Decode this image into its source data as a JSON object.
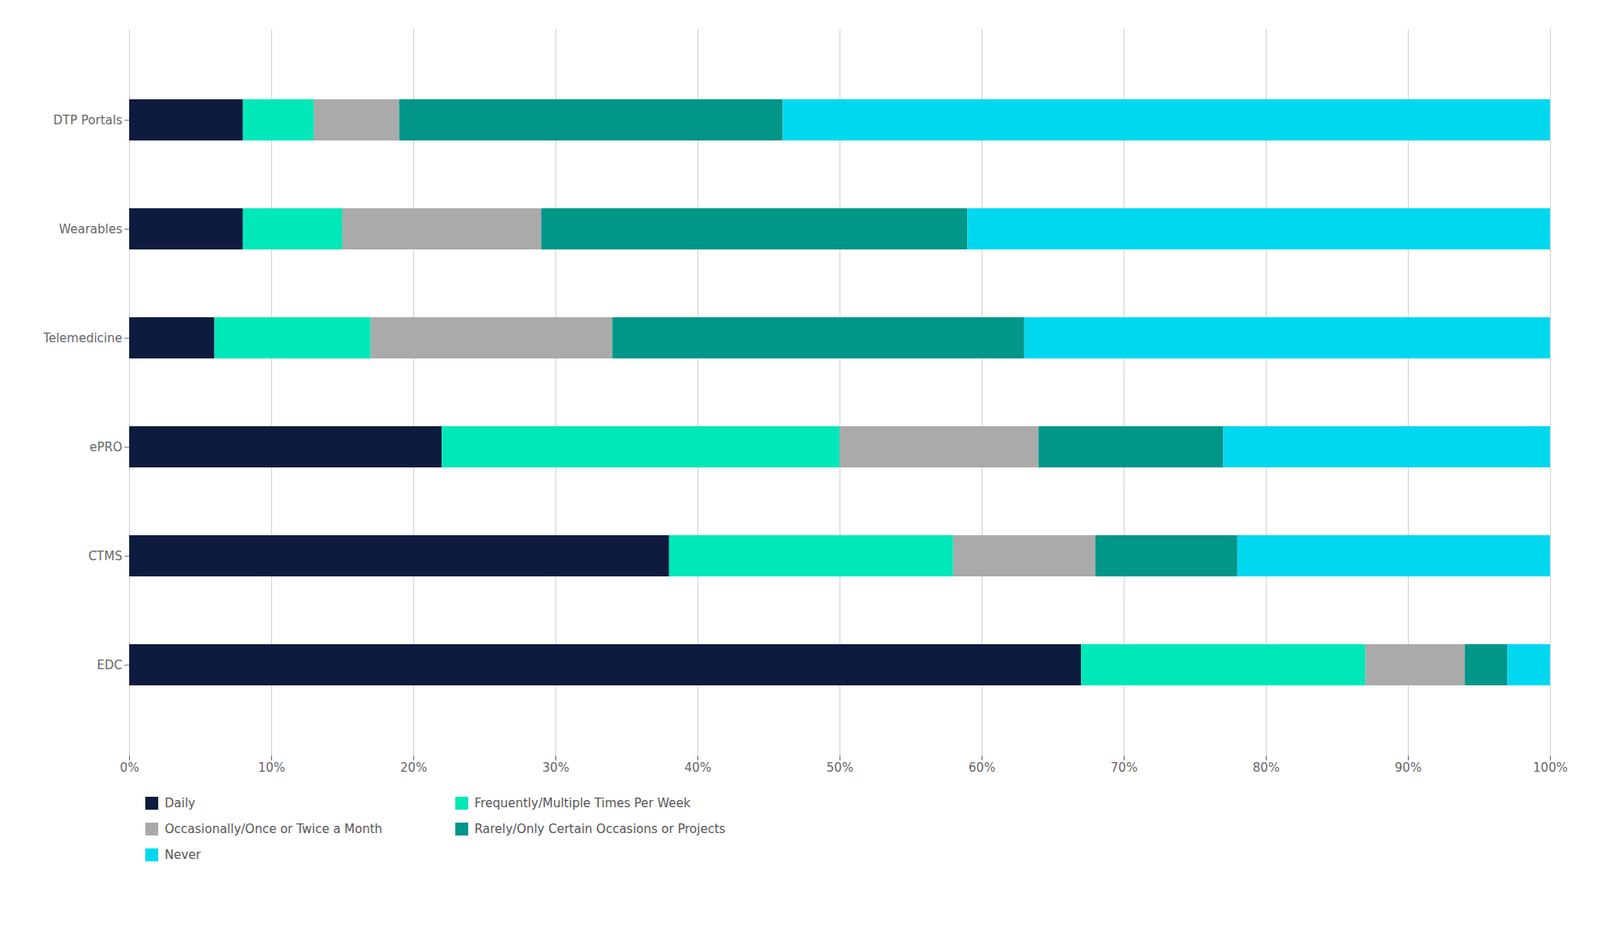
{
  "chart_data": {
    "type": "bar",
    "orientation": "horizontal",
    "stacked": true,
    "categories": [
      "DTP Portals",
      "Wearables",
      "Telemedicine",
      "ePRO",
      "CTMS",
      "EDC"
    ],
    "series": [
      {
        "name": "Daily",
        "color": "#0d1b3e",
        "values": [
          8,
          8,
          6,
          22,
          38,
          67
        ]
      },
      {
        "name": "Frequently/Multiple Times Per Week",
        "color": "#00e8b8",
        "values": [
          5,
          7,
          11,
          28,
          20,
          20
        ]
      },
      {
        "name": "Occasionally/Once or Twice a Month",
        "color": "#aaaaaa",
        "values": [
          6,
          14,
          17,
          14,
          10,
          7
        ]
      },
      {
        "name": "Rarely/Only Certain Occasions or Projects",
        "color": "#009688",
        "values": [
          27,
          30,
          29,
          13,
          10,
          3
        ]
      },
      {
        "name": "Never",
        "color": "#00d8f0",
        "values": [
          54,
          41,
          37,
          23,
          22,
          3
        ]
      }
    ],
    "xlim": [
      0,
      100
    ],
    "xticks": [
      {
        "value": 0,
        "label": "0%"
      },
      {
        "value": 10,
        "label": "10%"
      },
      {
        "value": 20,
        "label": "20%"
      },
      {
        "value": 30,
        "label": "30%"
      },
      {
        "value": 40,
        "label": "40%"
      },
      {
        "value": 50,
        "label": "50%"
      },
      {
        "value": 60,
        "label": "60%"
      },
      {
        "value": 70,
        "label": "70%"
      },
      {
        "value": 80,
        "label": "80%"
      },
      {
        "value": 90,
        "label": "90%"
      },
      {
        "value": 100,
        "label": "100%"
      }
    ],
    "grid": true,
    "legend": "bottom"
  }
}
